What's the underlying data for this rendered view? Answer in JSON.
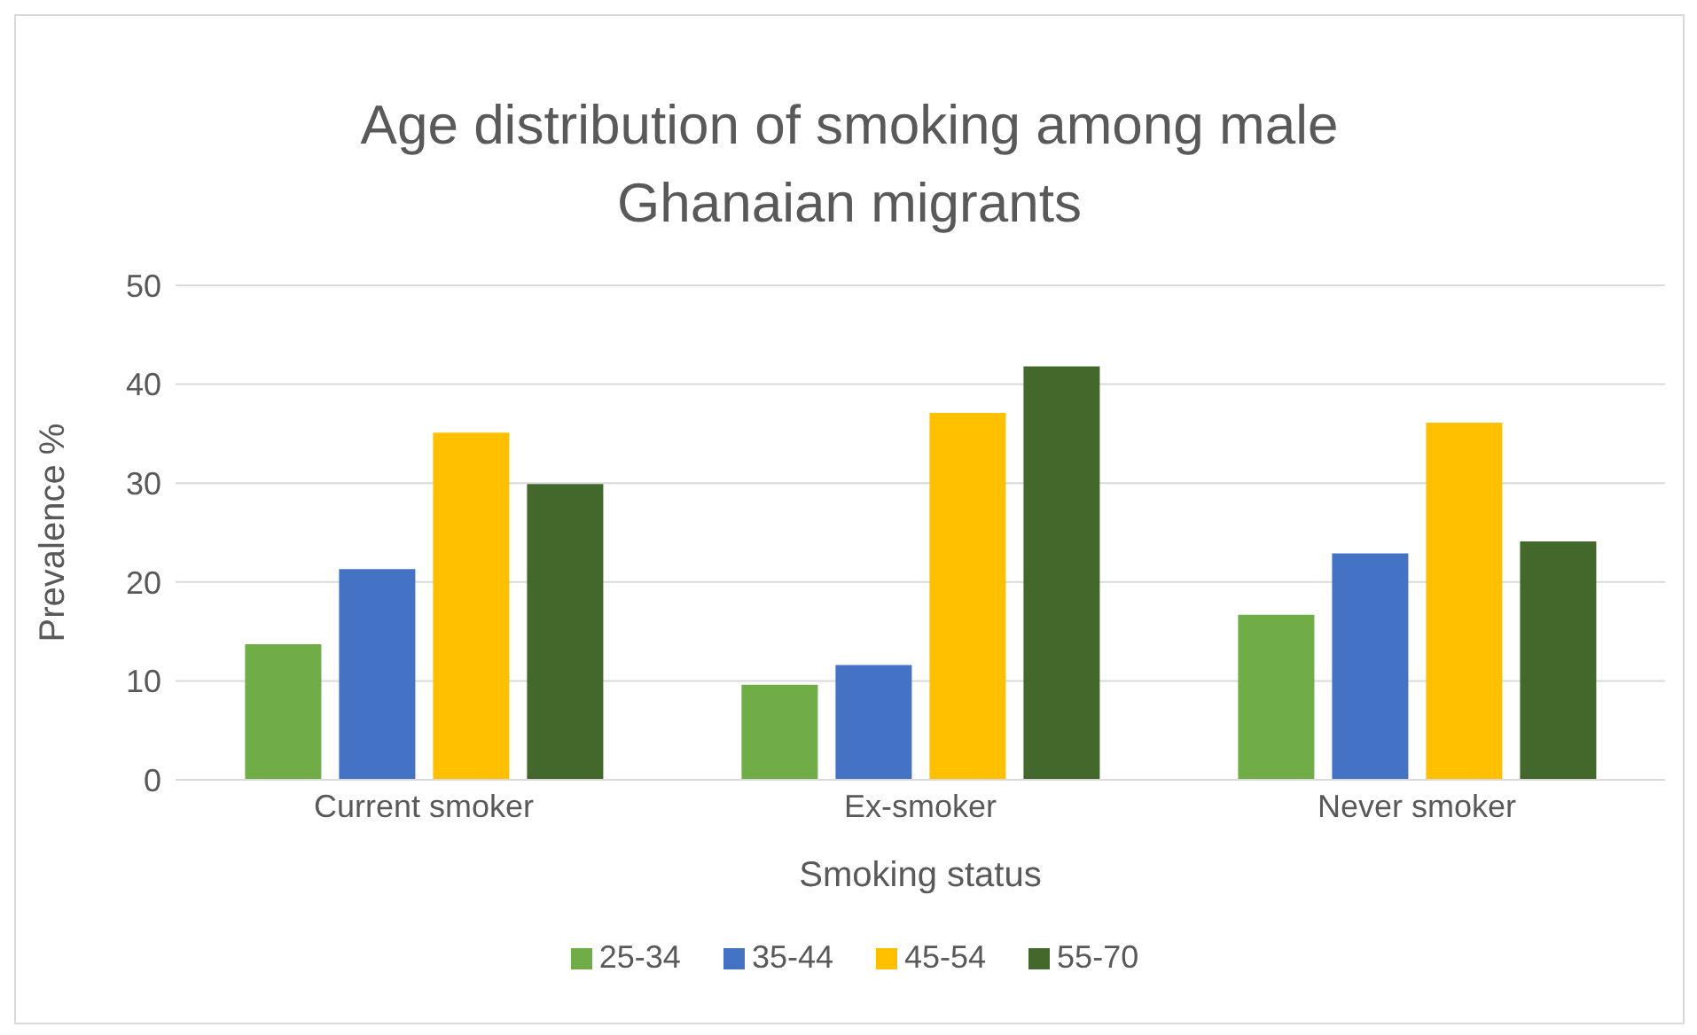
{
  "chart_data": {
    "type": "bar",
    "title": "Age distribution of smoking among male Ghanaian migrants",
    "xlabel": "Smoking status",
    "ylabel": "Prevalence %",
    "categories": [
      "Current smoker",
      "Ex-smoker",
      "Never smoker"
    ],
    "series": [
      {
        "name": "25-34",
        "color": "#70ad47",
        "values": [
          13.7,
          9.6,
          16.7
        ]
      },
      {
        "name": "35-44",
        "color": "#4472c4",
        "values": [
          21.3,
          11.6,
          22.9
        ]
      },
      {
        "name": "45-54",
        "color": "#ffc000",
        "values": [
          35.1,
          37.1,
          36.1
        ]
      },
      {
        "name": "55-70",
        "color": "#43682b",
        "values": [
          29.9,
          41.8,
          24.1
        ]
      }
    ],
    "ylim": [
      0,
      50
    ],
    "yticks": [
      0,
      10,
      20,
      30,
      40,
      50
    ],
    "grid": "y",
    "legend": "bottom"
  }
}
